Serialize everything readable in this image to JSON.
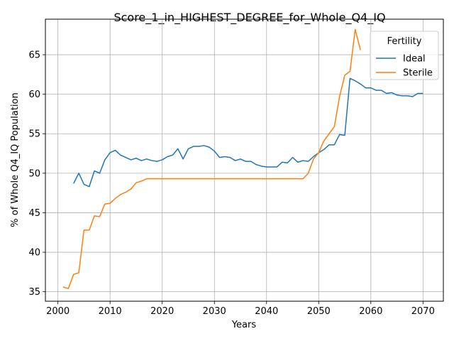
{
  "chart_data": {
    "type": "line",
    "title": "Score_1_in_HIGHEST_DEGREE_for_Whole_Q4_IQ",
    "xlabel": "Years",
    "ylabel": "% of Whole Q4_IQ Population",
    "xlim": [
      1997.6,
      2073.9
    ],
    "ylim": [
      33.8,
      69.5
    ],
    "xticks": [
      2000,
      2010,
      2020,
      2030,
      2040,
      2050,
      2060,
      2070
    ],
    "yticks": [
      35,
      40,
      45,
      50,
      55,
      60,
      65
    ],
    "grid": true,
    "legend": {
      "title": "Fertility",
      "placement": "top-right"
    },
    "series": [
      {
        "name": "Ideal",
        "color": "#1f77b4",
        "x": [
          2003,
          2004,
          2005,
          2006,
          2007,
          2008,
          2009,
          2010,
          2011,
          2012,
          2013,
          2014,
          2015,
          2016,
          2017,
          2018,
          2019,
          2020,
          2021,
          2022,
          2023,
          2024,
          2025,
          2026,
          2027,
          2028,
          2029,
          2030,
          2031,
          2032,
          2033,
          2034,
          2035,
          2036,
          2037,
          2038,
          2039,
          2040,
          2041,
          2042,
          2043,
          2044,
          2045,
          2046,
          2047,
          2048,
          2049,
          2050,
          2051,
          2052,
          2053,
          2054,
          2055,
          2056,
          2057,
          2058,
          2059,
          2060,
          2061,
          2062,
          2063,
          2064,
          2065,
          2066,
          2067,
          2068,
          2069,
          2070
        ],
        "y": [
          48.7,
          50.0,
          48.6,
          48.3,
          50.3,
          50.0,
          51.7,
          52.6,
          52.9,
          52.3,
          52.0,
          51.7,
          51.9,
          51.6,
          51.8,
          51.6,
          51.5,
          51.7,
          52.1,
          52.3,
          53.1,
          51.8,
          53.1,
          53.4,
          53.4,
          53.5,
          53.3,
          52.8,
          52.0,
          52.1,
          52.0,
          51.6,
          51.8,
          51.5,
          51.5,
          51.1,
          50.9,
          50.8,
          50.8,
          50.8,
          51.4,
          51.3,
          52.0,
          51.4,
          51.6,
          51.5,
          52.1,
          52.6,
          53.0,
          53.6,
          53.6,
          54.9,
          54.8,
          62.0,
          61.7,
          61.3,
          60.8,
          60.8,
          60.5,
          60.5,
          60.1,
          60.2,
          59.9,
          59.8,
          59.8,
          59.7,
          60.1,
          60.1
        ]
      },
      {
        "name": "Sterile",
        "color": "#ff7f0e",
        "x": [
          2001,
          2002,
          2003,
          2004,
          2005,
          2006,
          2007,
          2008,
          2009,
          2010,
          2011,
          2012,
          2013,
          2014,
          2015,
          2016,
          2017,
          2018,
          2019,
          2020,
          2021,
          2022,
          2023,
          2024,
          2025,
          2026,
          2027,
          2028,
          2029,
          2030,
          2031,
          2032,
          2033,
          2034,
          2035,
          2036,
          2037,
          2038,
          2039,
          2040,
          2041,
          2042,
          2043,
          2044,
          2045,
          2046,
          2047,
          2048,
          2049,
          2050,
          2051,
          2052,
          2053,
          2054,
          2055,
          2056,
          2057,
          2058
        ],
        "y": [
          35.6,
          35.4,
          37.2,
          37.4,
          42.8,
          42.8,
          44.6,
          44.5,
          46.1,
          46.2,
          46.8,
          47.3,
          47.6,
          48.0,
          48.8,
          49.0,
          49.3,
          49.3,
          49.3,
          49.3,
          49.3,
          49.3,
          49.3,
          49.3,
          49.3,
          49.3,
          49.3,
          49.3,
          49.3,
          49.3,
          49.3,
          49.3,
          49.3,
          49.3,
          49.3,
          49.3,
          49.3,
          49.3,
          49.3,
          49.3,
          49.3,
          49.3,
          49.3,
          49.3,
          49.3,
          49.3,
          49.3,
          50.0,
          51.8,
          52.6,
          54.1,
          55.0,
          55.9,
          59.7,
          62.4,
          62.9,
          68.2,
          65.6
        ]
      }
    ]
  }
}
